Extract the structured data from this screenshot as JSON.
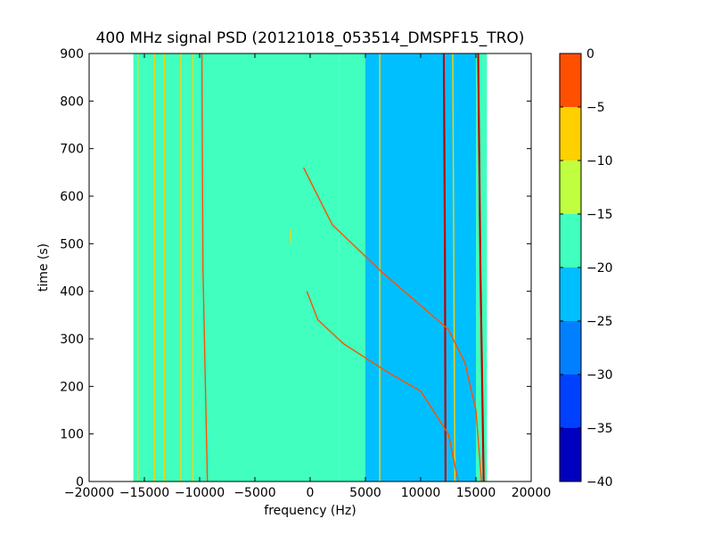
{
  "chart_data": {
    "type": "heatmap",
    "title": "400 MHz signal PSD (20121018_053514_DMSPF15_TRO)",
    "xlabel": "frequency (Hz)",
    "ylabel": "time (s)",
    "xlim": [
      -20000,
      20000
    ],
    "ylim": [
      0,
      900
    ],
    "x_ticks": [
      -20000,
      -15000,
      -10000,
      -5000,
      0,
      5000,
      10000,
      15000,
      20000
    ],
    "x_tick_labels": [
      "−20000",
      "−15000",
      "−10000",
      "−5000",
      "0",
      "5000",
      "10000",
      "15000",
      "20000"
    ],
    "y_ticks": [
      0,
      100,
      200,
      300,
      400,
      500,
      600,
      700,
      800,
      900
    ],
    "y_tick_labels": [
      "0",
      "100",
      "200",
      "300",
      "400",
      "500",
      "600",
      "700",
      "800",
      "900"
    ],
    "data_extent_hz": [
      -16000,
      16000
    ],
    "colorbar": {
      "levels": [
        -40,
        -35,
        -30,
        -25,
        -20,
        -15,
        -10,
        -5,
        0
      ],
      "tick_labels": [
        "−40",
        "−35",
        "−30",
        "−25",
        "−20",
        "−15",
        "−10",
        "−5",
        "0"
      ],
      "colors": [
        "#0000bf",
        "#0040ff",
        "#0080ff",
        "#00bfff",
        "#40ffbf",
        "#bfff40",
        "#ffd000",
        "#ff5000",
        "#c00000"
      ]
    },
    "regions": [
      {
        "x0": -16000,
        "x1": 2600,
        "level": -17.5
      },
      {
        "x0": 2600,
        "x1": 5000,
        "level": -20
      },
      {
        "x0": 5000,
        "x1": 12200,
        "level": -22.5
      },
      {
        "x0": 12200,
        "x1": 15000,
        "level": -22.5
      },
      {
        "x0": 15000,
        "x1": 16000,
        "level": -17.5
      }
    ],
    "lines": [
      {
        "points": [
          [
            -15600,
            0
          ],
          [
            -15600,
            900
          ]
        ],
        "level": -10
      },
      {
        "points": [
          [
            -14100,
            0
          ],
          [
            -14100,
            900
          ]
        ],
        "level": -10
      },
      {
        "points": [
          [
            -13200,
            0
          ],
          [
            -13200,
            900
          ]
        ],
        "level": -10
      },
      {
        "points": [
          [
            -11700,
            0
          ],
          [
            -11700,
            900
          ]
        ],
        "level": -10
      },
      {
        "points": [
          [
            -10600,
            0
          ],
          [
            -10600,
            900
          ]
        ],
        "level": -10
      },
      {
        "points": [
          [
            -9300,
            0
          ],
          [
            -9700,
            450
          ],
          [
            -9800,
            900
          ]
        ],
        "level": -5
      },
      {
        "points": [
          [
            6300,
            0
          ],
          [
            6300,
            900
          ]
        ],
        "level": -10
      },
      {
        "points": [
          [
            12250,
            0
          ],
          [
            12200,
            450
          ],
          [
            12100,
            900
          ]
        ],
        "level": 0
      },
      {
        "points": [
          [
            13100,
            0
          ],
          [
            13000,
            450
          ],
          [
            12900,
            900
          ]
        ],
        "level": -10
      },
      {
        "points": [
          [
            15700,
            0
          ],
          [
            15400,
            450
          ],
          [
            15200,
            900
          ]
        ],
        "level": 0
      },
      {
        "points": [
          [
            -1800,
            530
          ],
          [
            -1700,
            500
          ]
        ],
        "level": -10
      },
      {
        "points": [
          [
            -600,
            660
          ],
          [
            2000,
            540
          ],
          [
            6500,
            440
          ],
          [
            9500,
            380
          ],
          [
            12500,
            320
          ],
          [
            14000,
            250
          ],
          [
            15000,
            150
          ],
          [
            15500,
            0
          ]
        ],
        "level": -5
      },
      {
        "points": [
          [
            -300,
            400
          ],
          [
            700,
            340
          ],
          [
            3000,
            290
          ],
          [
            7000,
            230
          ],
          [
            10000,
            190
          ],
          [
            12500,
            100
          ],
          [
            13400,
            0
          ]
        ],
        "level": -5
      }
    ]
  }
}
